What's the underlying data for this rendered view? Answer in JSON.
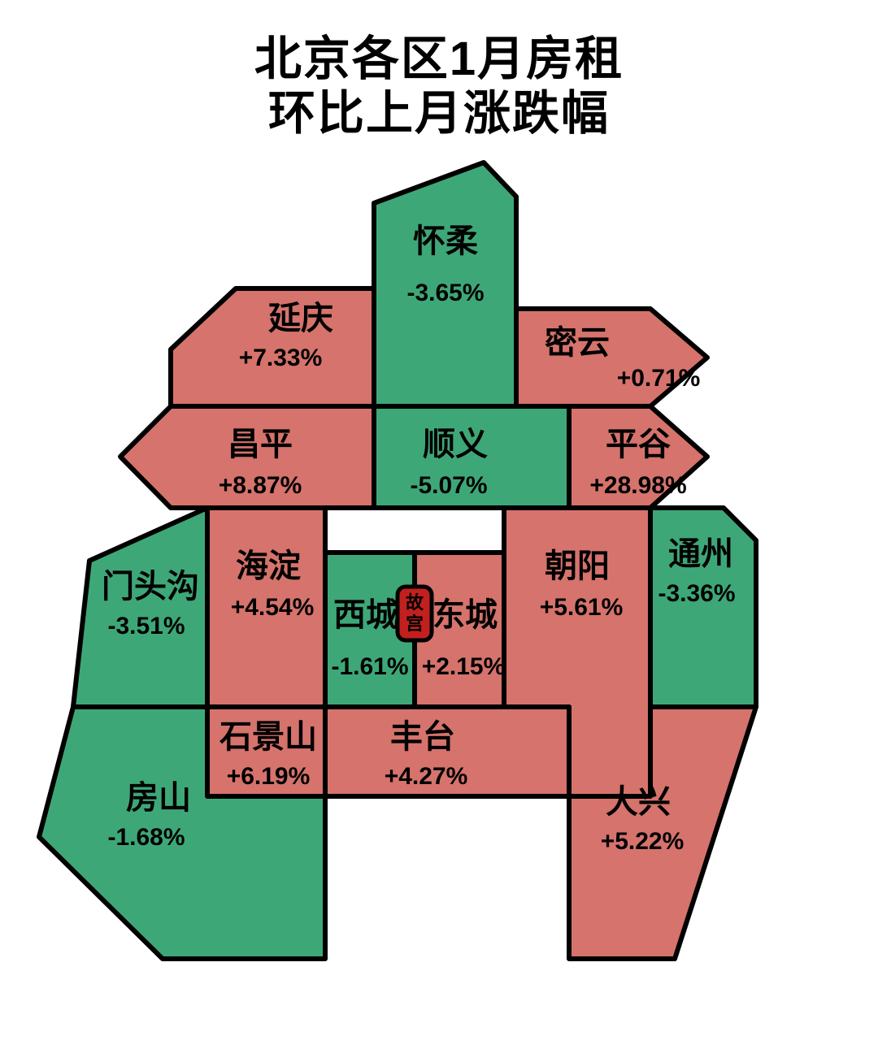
{
  "type": "choropleth-map-cartogram",
  "title_line1": "北京各区1月房租",
  "title_line2": "环比上月涨跌幅",
  "title_fontsize": 58,
  "title_color": "#000000",
  "background_color": "#ffffff",
  "stroke_color": "#000000",
  "stroke_width": 6,
  "color_up": "#d5736c",
  "color_down": "#3ea778",
  "name_fontsize": 40,
  "value_fontsize": 30,
  "center_marker": {
    "label": "故宫",
    "fill": "#c2201e",
    "text_color": "#f6e2b0",
    "border_color": "#000000",
    "fontsize": 22
  },
  "districts": {
    "huairou": {
      "name": "怀柔",
      "value": "-3.65%",
      "dir": "down"
    },
    "yanqing": {
      "name": "延庆",
      "value": "+7.33%",
      "dir": "up"
    },
    "miyun": {
      "name": "密云",
      "value": "+0.71%",
      "dir": "up"
    },
    "changping": {
      "name": "昌平",
      "value": "+8.87%",
      "dir": "up"
    },
    "shunyi": {
      "name": "顺义",
      "value": "-5.07%",
      "dir": "down"
    },
    "pinggu": {
      "name": "平谷",
      "value": "+28.98%",
      "dir": "up"
    },
    "mentougou": {
      "name": "门头沟",
      "value": "-3.51%",
      "dir": "down"
    },
    "haidian": {
      "name": "海淀",
      "value": "+4.54%",
      "dir": "up"
    },
    "xicheng": {
      "name": "西城",
      "value": "-1.61%",
      "dir": "down"
    },
    "dongcheng": {
      "name": "东城",
      "value": "+2.15%",
      "dir": "up"
    },
    "chaoyang": {
      "name": "朝阳",
      "value": "+5.61%",
      "dir": "up"
    },
    "tongzhou": {
      "name": "通州",
      "value": "-3.36%",
      "dir": "down"
    },
    "shijingshan": {
      "name": "石景山",
      "value": "+6.19%",
      "dir": "up"
    },
    "fengtai": {
      "name": "丰台",
      "value": "+4.27%",
      "dir": "up"
    },
    "daxing": {
      "name": "大兴",
      "value": "+5.22%",
      "dir": "up"
    },
    "fangshan": {
      "name": "房山",
      "value": "-1.68%",
      "dir": "down"
    }
  }
}
